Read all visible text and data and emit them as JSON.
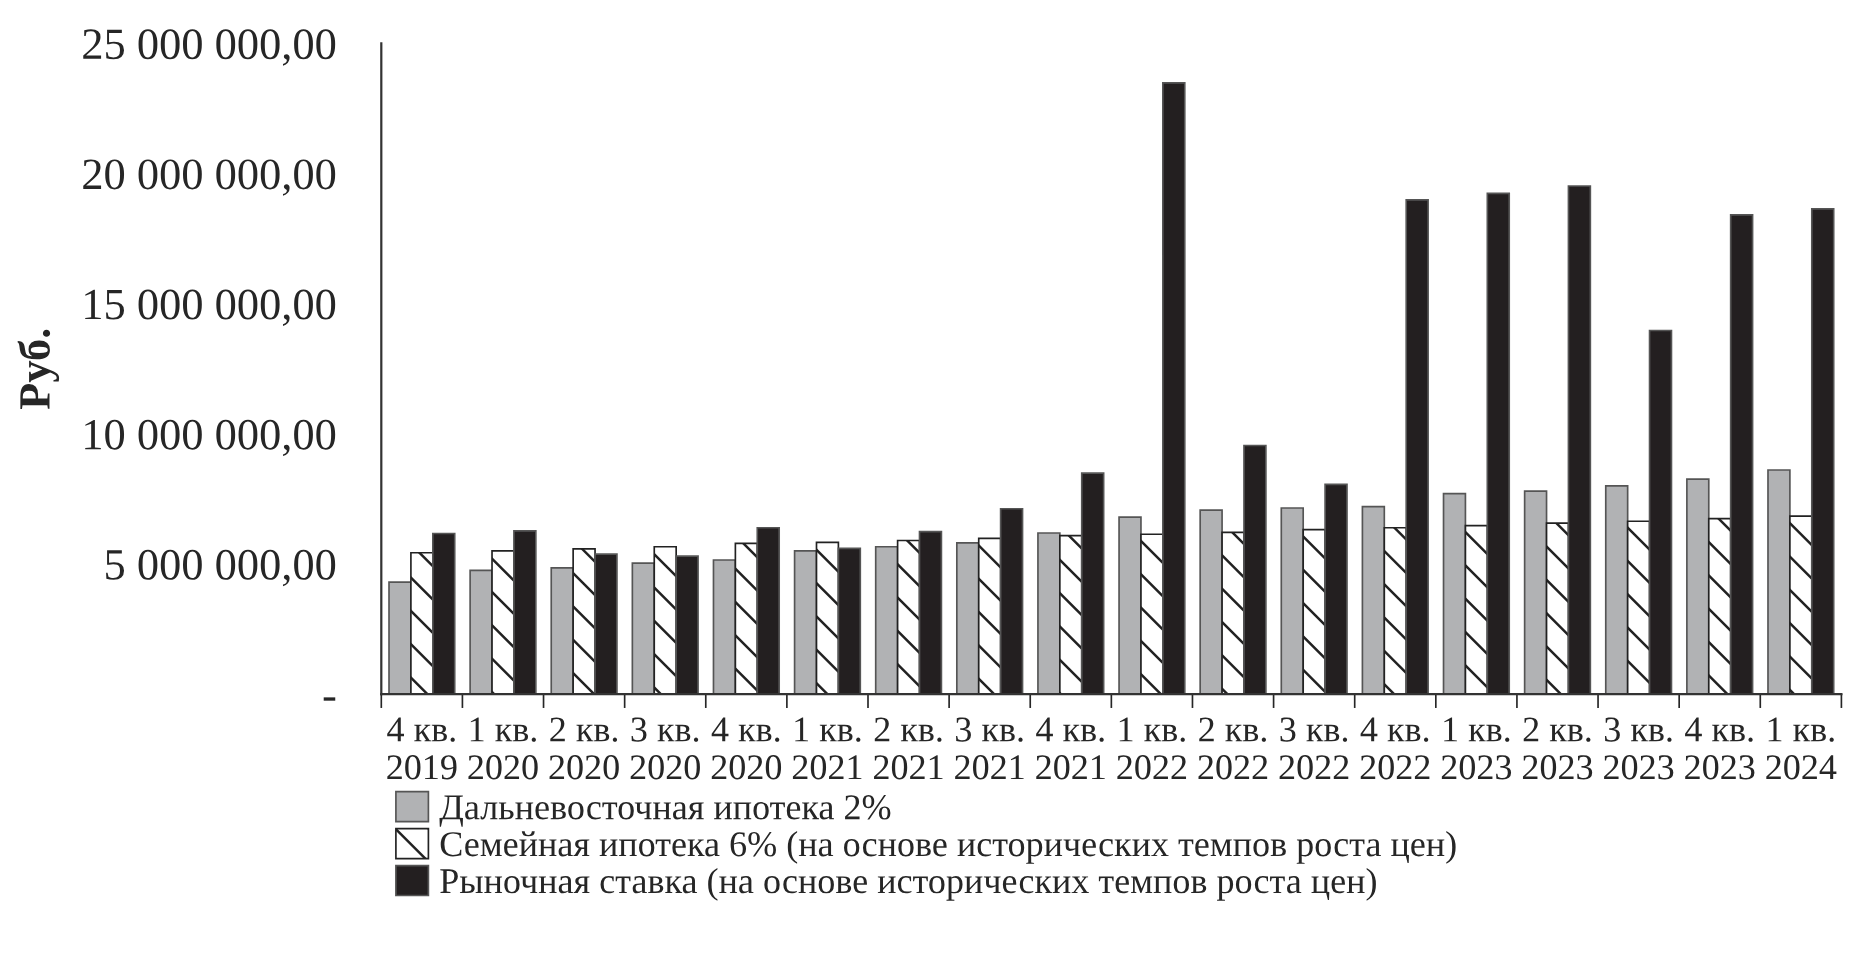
{
  "chart_data": {
    "type": "bar",
    "ylabel": "Руб.",
    "categories": [
      "4 кв.\n2019",
      "1 кв.\n2020",
      "2 кв.\n2020",
      "3 кв.\n2020",
      "4 кв.\n2020",
      "1 кв.\n2021",
      "2 кв.\n2021",
      "3 кв.\n2021",
      "4 кв.\n2021",
      "1 кв.\n2022",
      "2 кв.\n2022",
      "3 кв.\n2022",
      "4 кв.\n2022",
      "1 кв.\n2023",
      "2 кв.\n2023",
      "3 кв.\n2023",
      "4 кв.\n2023",
      "1 кв.\n2024"
    ],
    "series": [
      {
        "name": "Дальневосточная ипотека 2%",
        "color": "#b1b2b4",
        "values": [
          4300000,
          4750000,
          4850000,
          5030000,
          5150000,
          5500000,
          5660000,
          5810000,
          6190000,
          6800000,
          7070000,
          7150000,
          7200000,
          7700000,
          7800000,
          8000000,
          8260000,
          8610000
        ]
      },
      {
        "name": "Семейная ипотека 6% (на основе исторических темпов роста цен)",
        "color": "#222222",
        "values": [
          5430000,
          5500000,
          5580000,
          5660000,
          5790000,
          5830000,
          5900000,
          5980000,
          6090000,
          6140000,
          6210000,
          6320000,
          6390000,
          6470000,
          6570000,
          6640000,
          6740000,
          6840000
        ]
      },
      {
        "name": "Рыночная ставка (на основе исторических темпов роста цен)",
        "color": "#231f20",
        "values": [
          6170000,
          6270000,
          5380000,
          5300000,
          6390000,
          5600000,
          6240000,
          7120000,
          8490000,
          23480000,
          9550000,
          8060000,
          18990000,
          19240000,
          19520000,
          13970000,
          18410000,
          18640000
        ]
      }
    ],
    "ylim": [
      0,
      25000000
    ],
    "yticks": [
      {
        "value": 0,
        "label": "-"
      },
      {
        "value": 5000000,
        "label": "5 000 000,00"
      },
      {
        "value": 10000000,
        "label": "10 000 000,00"
      },
      {
        "value": 15000000,
        "label": "15 000 000,00"
      },
      {
        "value": 20000000,
        "label": "20 000 000,00"
      },
      {
        "value": 25000000,
        "label": "25 000 000,00"
      }
    ],
    "grid": false,
    "legend": "bottom"
  }
}
